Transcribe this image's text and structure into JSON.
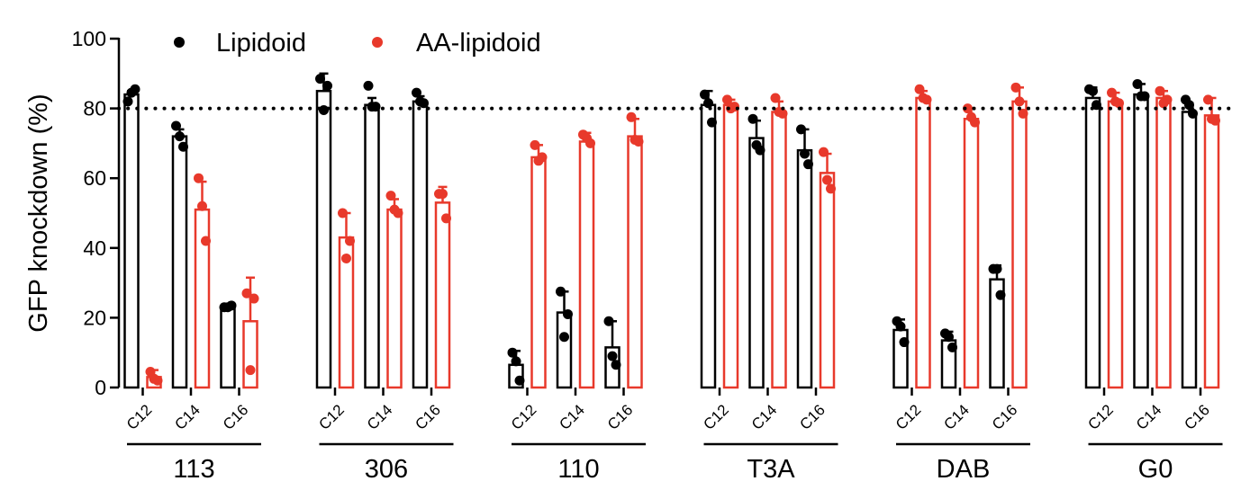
{
  "chart_data": {
    "type": "bar",
    "ylabel": "GFP knockdown (%)",
    "ylim": [
      0,
      100
    ],
    "yticks": [
      0,
      20,
      40,
      60,
      80,
      100
    ],
    "reference_line": 80,
    "legend": [
      {
        "name": "Lipidoid",
        "color": "#000000"
      },
      {
        "name": "AA-lipidoid",
        "color": "#e8392b"
      }
    ],
    "groups": [
      {
        "label": "113",
        "subcategories": [
          "C12",
          "C14",
          "C16"
        ],
        "lipidoid": {
          "values": [
            84,
            72,
            23
          ],
          "errors": [
            1,
            2,
            1
          ],
          "points": [
            [
              82,
              85.5,
              84.5
            ],
            [
              75,
              69,
              72
            ],
            [
              23,
              23.5,
              23
            ]
          ]
        },
        "aa_lipidoid": {
          "values": [
            3,
            51,
            19
          ],
          "errors": [
            2,
            8,
            12.5
          ],
          "points": [
            [
              4.5,
              2,
              2.5
            ],
            [
              60,
              42,
              52
            ],
            [
              27,
              25.5,
              5
            ]
          ]
        }
      },
      {
        "label": "306",
        "subcategories": [
          "C12",
          "C14",
          "C16"
        ],
        "lipidoid": {
          "values": [
            85,
            81,
            82
          ],
          "errors": [
            5,
            2,
            1.5
          ],
          "points": [
            [
              88.5,
              86.5,
              79.5
            ],
            [
              86.5,
              80.5,
              80.5
            ],
            [
              84.5,
              81.5,
              82
            ]
          ]
        },
        "aa_lipidoid": {
          "values": [
            43,
            51,
            53
          ],
          "errors": [
            7,
            3,
            4.5
          ],
          "points": [
            [
              50,
              42,
              37
            ],
            [
              55,
              50,
              51
            ],
            [
              55.5,
              48.5,
              55.5
            ]
          ]
        }
      },
      {
        "label": "110",
        "subcategories": [
          "C12",
          "C14",
          "C16"
        ],
        "lipidoid": {
          "values": [
            6.5,
            21.5,
            11.5
          ],
          "errors": [
            4,
            6,
            7.5
          ],
          "points": [
            [
              10,
              2,
              7.5
            ],
            [
              27.5,
              21,
              14.5
            ],
            [
              19,
              6.5,
              9
            ]
          ]
        },
        "aa_lipidoid": {
          "values": [
            66,
            70.5,
            72
          ],
          "errors": [
            3.5,
            2.5,
            5
          ],
          "points": [
            [
              69.5,
              66,
              65
            ],
            [
              72.5,
              70,
              71.5
            ],
            [
              77.5,
              70.5,
              71
            ]
          ]
        }
      },
      {
        "label": "T3A",
        "subcategories": [
          "C12",
          "C14",
          "C16"
        ],
        "lipidoid": {
          "values": [
            81,
            71.5,
            68
          ],
          "errors": [
            4,
            5,
            6
          ],
          "points": [
            [
              84,
              76,
              81.5
            ],
            [
              77,
              68,
              69.5
            ],
            [
              74,
              64,
              67
            ]
          ]
        },
        "aa_lipidoid": {
          "values": [
            81,
            79,
            61.5
          ],
          "errors": [
            1.5,
            3,
            5.5
          ],
          "points": [
            [
              82.5,
              80.5,
              80
            ],
            [
              83,
              78.5,
              79
            ],
            [
              67.5,
              57,
              59.5
            ]
          ]
        }
      },
      {
        "label": "DAB",
        "subcategories": [
          "C12",
          "C14",
          "C16"
        ],
        "lipidoid": {
          "values": [
            16.5,
            13.5,
            31
          ],
          "errors": [
            3,
            2.5,
            4
          ],
          "points": [
            [
              19,
              13,
              17.5
            ],
            [
              15.5,
              11.5,
              14.5
            ],
            [
              34,
              26.5,
              34
            ]
          ]
        },
        "aa_lipidoid": {
          "values": [
            83,
            77,
            82
          ],
          "errors": [
            2,
            3,
            4
          ],
          "points": [
            [
              85.5,
              82.5,
              83
            ],
            [
              80,
              76,
              77.5
            ],
            [
              86,
              78.5,
              82
            ]
          ]
        }
      },
      {
        "label": "G0",
        "subcategories": [
          "C12",
          "C14",
          "C16"
        ],
        "lipidoid": {
          "values": [
            83,
            84,
            79
          ],
          "errors": [
            3,
            3,
            2.5
          ],
          "points": [
            [
              85.5,
              81,
              85
            ],
            [
              87,
              83.5,
              83.5
            ],
            [
              82.5,
              78.5,
              81
            ]
          ]
        },
        "aa_lipidoid": {
          "values": [
            82,
            83,
            78
          ],
          "errors": [
            2.5,
            2,
            5
          ],
          "points": [
            [
              84.5,
              81.5,
              82
            ],
            [
              85,
              82.5,
              81.5
            ],
            [
              82.5,
              76.5,
              77
            ]
          ]
        }
      }
    ]
  }
}
